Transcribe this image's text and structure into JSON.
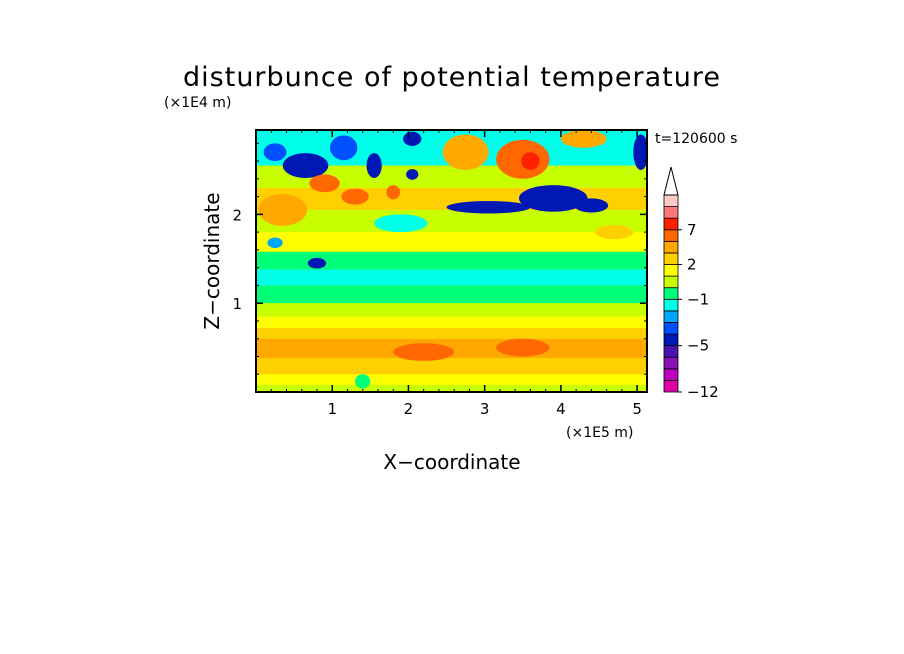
{
  "chart_data": {
    "type": "heatmap",
    "title": "disturbunce of potential temperature",
    "xlabel": "X−coordinate",
    "ylabel": "Z−coordinate",
    "x_unit": "(×1E5 m)",
    "y_unit": "(×1E4 m)",
    "time_label": "t=120600 s",
    "xlim": [
      0,
      5.13
    ],
    "ylim": [
      0,
      2.95
    ],
    "x_ticks": [
      1,
      2,
      3,
      4,
      5
    ],
    "x_tick_labels": [
      "1",
      "2",
      "3",
      "4",
      "5"
    ],
    "y_ticks": [
      1,
      2
    ],
    "y_tick_labels": [
      "1",
      "2"
    ],
    "colorbar": {
      "levels": [
        -12,
        -10,
        -8,
        -6,
        -5,
        -4,
        -3,
        -2,
        -1,
        0,
        1,
        2,
        3,
        5,
        7,
        9,
        11
      ],
      "tick_labels": [
        "−12",
        "−5",
        "−1",
        "2",
        "7"
      ],
      "tick_values": [
        -12,
        -5,
        -1,
        2,
        7
      ],
      "extend": "max",
      "colors": [
        "#e000a8",
        "#c000c0",
        "#8a10b8",
        "#4b14b0",
        "#0018b4",
        "#0050ff",
        "#00a8ff",
        "#00ffe8",
        "#00ff78",
        "#c8ff00",
        "#ffff00",
        "#ffd000",
        "#ffa800",
        "#ff6800",
        "#ff2000",
        "#ff7878",
        "#ffc8c8"
      ]
    },
    "bands": [
      {
        "z_min": 0.0,
        "z_max": 0.08,
        "value": 0.5
      },
      {
        "z_min": 0.08,
        "z_max": 0.2,
        "value": 1.5
      },
      {
        "z_min": 0.2,
        "z_max": 0.38,
        "value": 2.5
      },
      {
        "z_min": 0.38,
        "z_max": 0.6,
        "value": 3.5
      },
      {
        "z_min": 0.6,
        "z_max": 0.72,
        "value": 2.5
      },
      {
        "z_min": 0.72,
        "z_max": 0.85,
        "value": 1.5
      },
      {
        "z_min": 0.85,
        "z_max": 1.0,
        "value": 0.5
      },
      {
        "z_min": 1.0,
        "z_max": 1.2,
        "value": -0.5
      },
      {
        "z_min": 1.2,
        "z_max": 1.38,
        "value": -1.5
      },
      {
        "z_min": 1.38,
        "z_max": 1.58,
        "value": -0.5
      },
      {
        "z_min": 1.58,
        "z_max": 1.8,
        "value": 1.5
      },
      {
        "z_min": 1.8,
        "z_max": 2.05,
        "value": 0.5
      },
      {
        "z_min": 2.05,
        "z_max": 2.3,
        "value": 2.5
      },
      {
        "z_min": 2.3,
        "z_max": 2.55,
        "value": 0.5
      },
      {
        "z_min": 2.55,
        "z_max": 2.95,
        "value": -1.5
      }
    ],
    "features": [
      {
        "x": 0.35,
        "z": 2.05,
        "rx": 0.32,
        "rz": 0.18,
        "value": 4
      },
      {
        "x": 0.65,
        "z": 2.55,
        "rx": 0.3,
        "rz": 0.14,
        "value": -5
      },
      {
        "x": 0.25,
        "z": 2.7,
        "rx": 0.15,
        "rz": 0.1,
        "value": -4
      },
      {
        "x": 0.9,
        "z": 2.35,
        "rx": 0.2,
        "rz": 0.1,
        "value": 5
      },
      {
        "x": 1.3,
        "z": 2.2,
        "rx": 0.18,
        "rz": 0.09,
        "value": 5
      },
      {
        "x": 0.8,
        "z": 1.45,
        "rx": 0.12,
        "rz": 0.06,
        "value": -5
      },
      {
        "x": 0.25,
        "z": 1.68,
        "rx": 0.1,
        "rz": 0.06,
        "value": -3
      },
      {
        "x": 1.15,
        "z": 2.75,
        "rx": 0.18,
        "rz": 0.14,
        "value": -4
      },
      {
        "x": 1.55,
        "z": 2.55,
        "rx": 0.1,
        "rz": 0.14,
        "value": -5
      },
      {
        "x": 1.8,
        "z": 2.25,
        "rx": 0.09,
        "rz": 0.08,
        "value": 5
      },
      {
        "x": 2.05,
        "z": 2.45,
        "rx": 0.08,
        "rz": 0.06,
        "value": -5
      },
      {
        "x": 2.05,
        "z": 2.85,
        "rx": 0.12,
        "rz": 0.08,
        "value": -5
      },
      {
        "x": 2.75,
        "z": 2.7,
        "rx": 0.3,
        "rz": 0.2,
        "value": 3
      },
      {
        "x": 3.5,
        "z": 2.62,
        "rx": 0.35,
        "rz": 0.22,
        "value": 5
      },
      {
        "x": 3.6,
        "z": 2.6,
        "rx": 0.12,
        "rz": 0.1,
        "value": 7
      },
      {
        "x": 3.05,
        "z": 2.08,
        "rx": 0.55,
        "rz": 0.07,
        "value": -5
      },
      {
        "x": 3.9,
        "z": 2.18,
        "rx": 0.45,
        "rz": 0.15,
        "value": -5
      },
      {
        "x": 4.4,
        "z": 2.1,
        "rx": 0.22,
        "rz": 0.08,
        "value": -5
      },
      {
        "x": 4.3,
        "z": 2.85,
        "rx": 0.3,
        "rz": 0.1,
        "value": 3
      },
      {
        "x": 5.05,
        "z": 2.7,
        "rx": 0.1,
        "rz": 0.2,
        "value": -5
      },
      {
        "x": 4.7,
        "z": 1.8,
        "rx": 0.25,
        "rz": 0.08,
        "value": 2
      },
      {
        "x": 1.9,
        "z": 1.9,
        "rx": 0.35,
        "rz": 0.1,
        "value": -2
      },
      {
        "x": 2.2,
        "z": 0.45,
        "rx": 0.4,
        "rz": 0.1,
        "value": 5
      },
      {
        "x": 3.5,
        "z": 0.5,
        "rx": 0.35,
        "rz": 0.1,
        "value": 5
      },
      {
        "x": 1.4,
        "z": 0.12,
        "rx": 0.1,
        "rz": 0.08,
        "value": -1
      }
    ]
  }
}
